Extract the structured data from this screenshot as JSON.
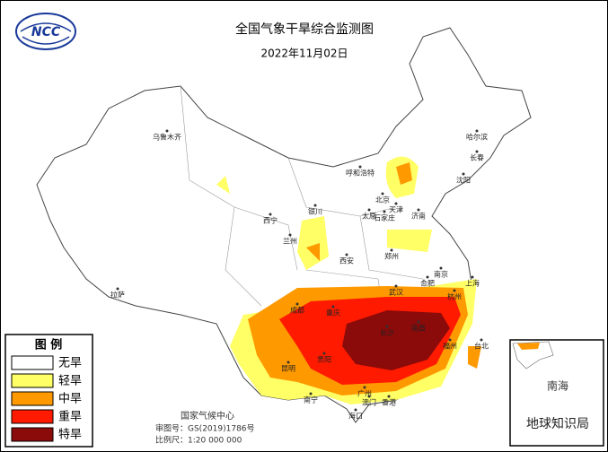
{
  "header": {
    "title": "全国气象干旱综合监测图",
    "date": "2022年11月02日",
    "logo": "NCC"
  },
  "legend": {
    "title": "图 例",
    "items": [
      {
        "label": "无旱",
        "color": "#ffffff"
      },
      {
        "label": "轻旱",
        "color": "#ffff66"
      },
      {
        "label": "中旱",
        "color": "#ff9900"
      },
      {
        "label": "重旱",
        "color": "#ff1a00"
      },
      {
        "label": "特旱",
        "color": "#8b0a0a"
      }
    ]
  },
  "cities": [
    "乌鲁木齐",
    "拉萨",
    "西宁",
    "兰州",
    "银川",
    "呼和浩特",
    "北京",
    "天津",
    "太原",
    "石家庄",
    "济南",
    "郑州",
    "西安",
    "成都",
    "重庆",
    "武汉",
    "合肥",
    "南京",
    "上海",
    "杭州",
    "长沙",
    "南昌",
    "贵阳",
    "昆明",
    "南宁",
    "广州",
    "福州",
    "台北",
    "海口",
    "哈尔滨",
    "长春",
    "沈阳",
    "香港",
    "澳门"
  ],
  "inset": {
    "label": "南海"
  },
  "footer": {
    "agency": "国家气候中心",
    "approval": "审图号：GS(2019)1786号",
    "scale": "比例尺：1:20 000 000"
  },
  "watermark": "地球知识局"
}
